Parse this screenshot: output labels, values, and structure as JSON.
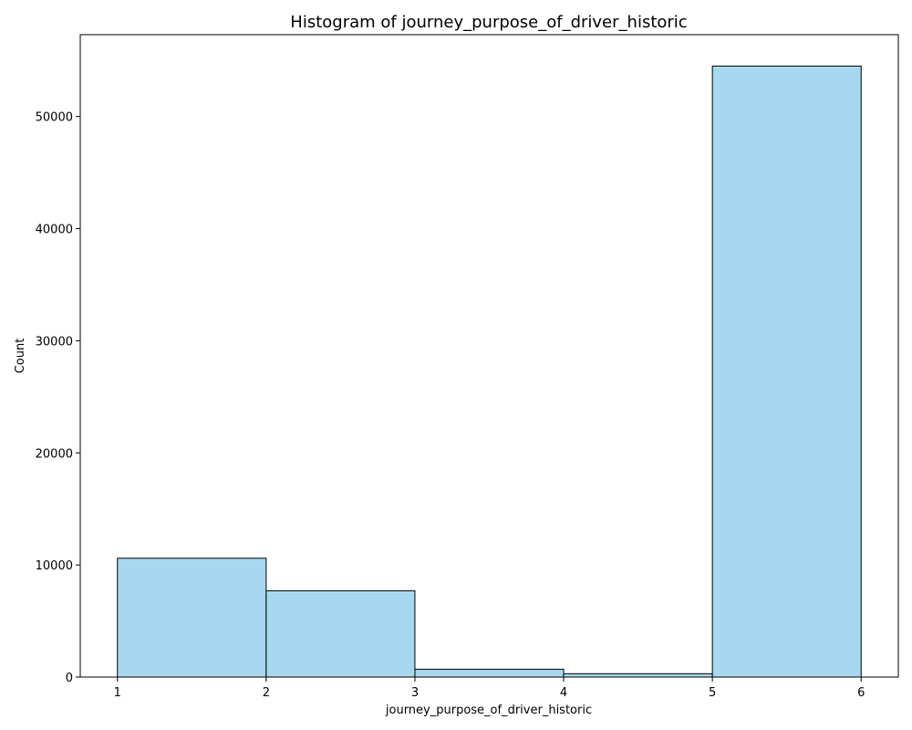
{
  "chart_data": {
    "type": "bar",
    "title": "Histogram of journey_purpose_of_driver_historic",
    "xlabel": "journey_purpose_of_driver_historic",
    "ylabel": "Count",
    "xlim": [
      0.75,
      6.25
    ],
    "ylim": [
      0,
      57300
    ],
    "x_ticks": [
      1,
      2,
      3,
      4,
      5,
      6
    ],
    "y_ticks": [
      0,
      10000,
      20000,
      30000,
      40000,
      50000
    ],
    "bins": [
      {
        "start": 1,
        "end": 2,
        "count": 10600
      },
      {
        "start": 2,
        "end": 3,
        "count": 7700
      },
      {
        "start": 3,
        "end": 4,
        "count": 700
      },
      {
        "start": 4,
        "end": 5,
        "count": 300
      },
      {
        "start": 5,
        "end": 6,
        "count": 54500
      }
    ],
    "grid": false,
    "legend": "none",
    "colors": {
      "bar_fill": "#a6d9ef",
      "bar_edge": "#000000"
    }
  }
}
